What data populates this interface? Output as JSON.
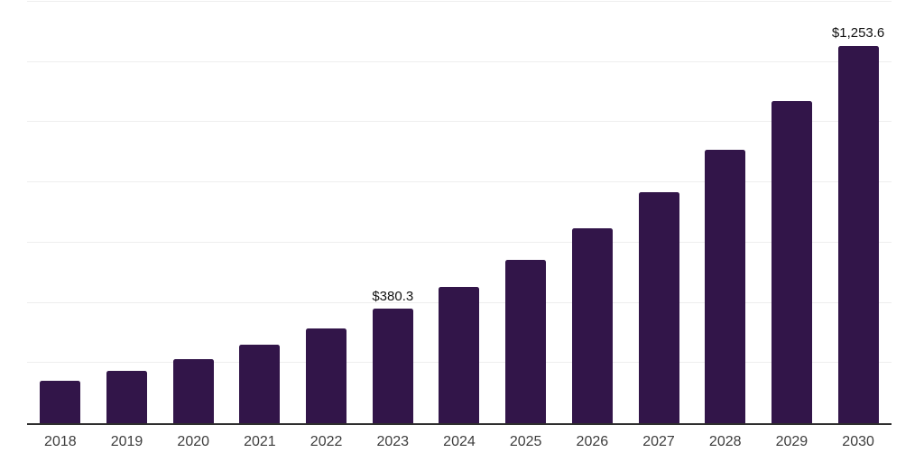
{
  "chart_data": {
    "type": "bar",
    "title": "",
    "xlabel": "",
    "ylabel": "",
    "categories": [
      "2018",
      "2019",
      "2020",
      "2021",
      "2022",
      "2023",
      "2024",
      "2025",
      "2026",
      "2027",
      "2028",
      "2029",
      "2030"
    ],
    "values": [
      142,
      173,
      214,
      261,
      315,
      380.3,
      453,
      544,
      647,
      767,
      907,
      1071,
      1253.6
    ],
    "labeled_points": [
      {
        "category": "2023",
        "label": "$380.3"
      },
      {
        "category": "2030",
        "label": "$1,253.6"
      }
    ],
    "ylim": [
      0,
      1400
    ],
    "grid_step": 200,
    "grid_on": true,
    "y_axis_labels_visible": false,
    "legend": "none",
    "colors": {
      "bar": "#321549",
      "gridline": "#eeeeee",
      "axis_line": "#2e2e2e",
      "tick_label": "#3d3d3d",
      "annotation": "#111111",
      "background": "#ffffff"
    }
  }
}
